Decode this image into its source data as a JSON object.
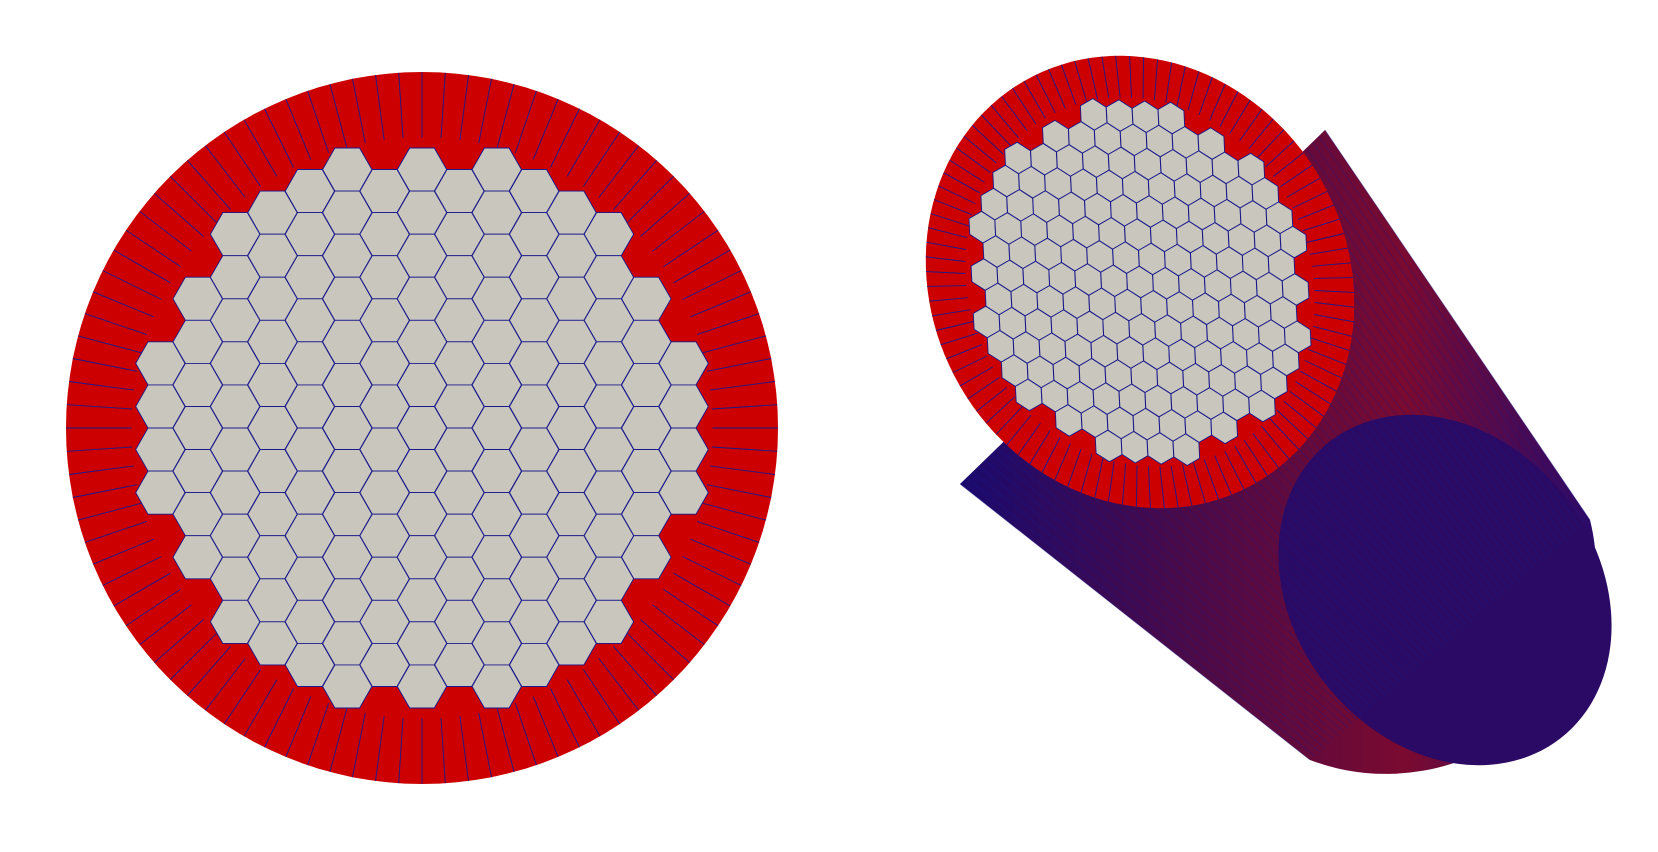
{
  "figure": {
    "background": "#ffffff",
    "colors": {
      "ring_fill": "#cc0000",
      "core_fill": "#c9c6bd",
      "edge_stroke": "#1a1a8c",
      "cylinder_side_dark": "#0d0a5e",
      "cylinder_side_mid": "#3b0a55",
      "cylinder_side_red": "#8a0a2a"
    },
    "panels": [
      {
        "name": "top-view",
        "description_shape": "circular mesh cross-section with hexagonal core and radial boundary layer",
        "ring_segments": 96,
        "hex_grid_rows": 15
      },
      {
        "name": "perspective-view",
        "description_shape": "3D extruded cylinder mesh showing top cap with hexagonal core and boundary layer",
        "ring_segments": 96,
        "hex_grid_rows": 15
      }
    ]
  }
}
